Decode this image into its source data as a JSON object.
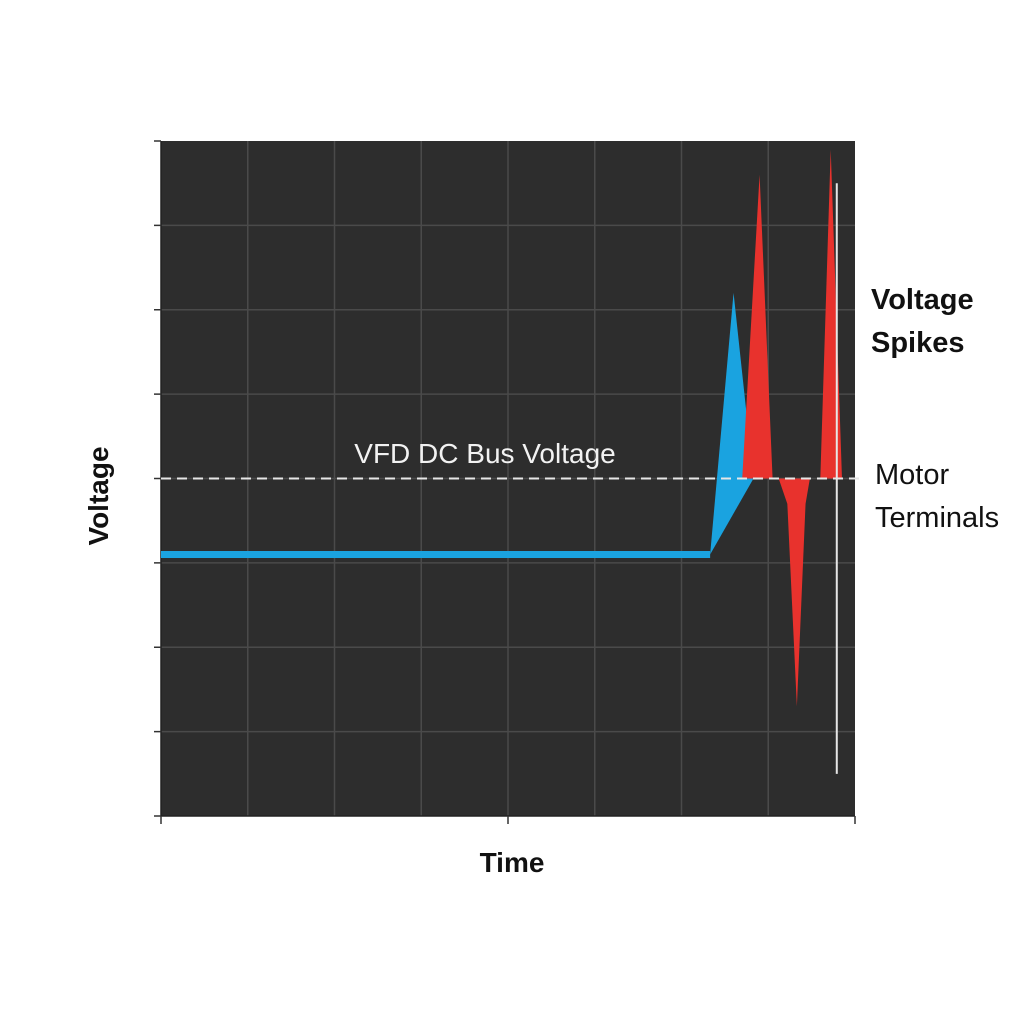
{
  "chart_data": {
    "type": "area",
    "title": "",
    "xlabel": "Time",
    "ylabel": "Voltage",
    "xlim": [
      0,
      8
    ],
    "ylim": [
      -4,
      4
    ],
    "grid": true,
    "background": "#2d2d2d",
    "reference_line": {
      "label": "VFD DC Bus Voltage",
      "y": 0,
      "style": "dashed",
      "color": "#e6e6e6"
    },
    "series": [
      {
        "color": "#1aa3e0",
        "points": [
          [
            0,
            -0.9
          ],
          [
            6.33,
            -0.9
          ],
          [
            6.6,
            2.2
          ],
          [
            6.83,
            0
          ]
        ]
      },
      {
        "color": "#e8322d",
        "points": [
          [
            6.7,
            0
          ],
          [
            6.9,
            3.6
          ],
          [
            7.05,
            0
          ],
          [
            7.12,
            0
          ],
          [
            7.22,
            -0.3
          ],
          [
            7.33,
            -2.7
          ],
          [
            7.43,
            -0.3
          ],
          [
            7.48,
            0
          ],
          [
            7.6,
            0
          ],
          [
            7.72,
            3.9
          ],
          [
            7.85,
            0
          ]
        ]
      }
    ],
    "annotations": [
      {
        "text_lines": [
          "Voltage",
          "Spikes"
        ]
      },
      {
        "text_lines": [
          "Motor",
          "Terminals"
        ]
      }
    ]
  }
}
